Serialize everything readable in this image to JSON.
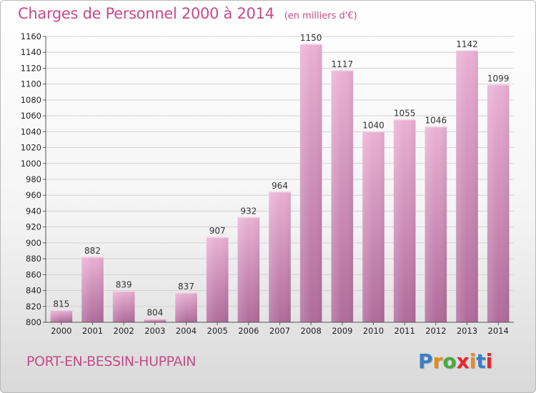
{
  "title": "Charges de Personnel 2000 à 2014",
  "unit": "(en milliers d'€)",
  "commune": "PORT-EN-BESSIN-HUPPAIN",
  "logo": {
    "letters": [
      "P",
      "r",
      "o",
      "x",
      "i",
      "t",
      "i"
    ],
    "colors": [
      "#3a7fc8",
      "#e98a1c",
      "#4aa83c",
      "#e8262e",
      "#e98a1c",
      "#3a7fc8",
      "#e8262e"
    ]
  },
  "colors": {
    "bar_light": "#eab1d4",
    "bar_dark": "#b06b9b",
    "title": "#c54b8c"
  },
  "chart_data": {
    "type": "bar",
    "categories": [
      "2000",
      "2001",
      "2002",
      "2003",
      "2004",
      "2005",
      "2006",
      "2007",
      "2008",
      "2009",
      "2010",
      "2011",
      "2012",
      "2013",
      "2014"
    ],
    "values": [
      815,
      882,
      839,
      804,
      837,
      907,
      932,
      964,
      1150,
      1117,
      1040,
      1055,
      1046,
      1142,
      1099
    ],
    "title": "Charges de Personnel 2000 à 2014",
    "ylim": [
      800,
      1160
    ],
    "yticks": [
      800,
      820,
      840,
      860,
      880,
      900,
      920,
      940,
      960,
      980,
      1000,
      1020,
      1040,
      1060,
      1080,
      1100,
      1120,
      1140,
      1160
    ],
    "grid": true
  }
}
